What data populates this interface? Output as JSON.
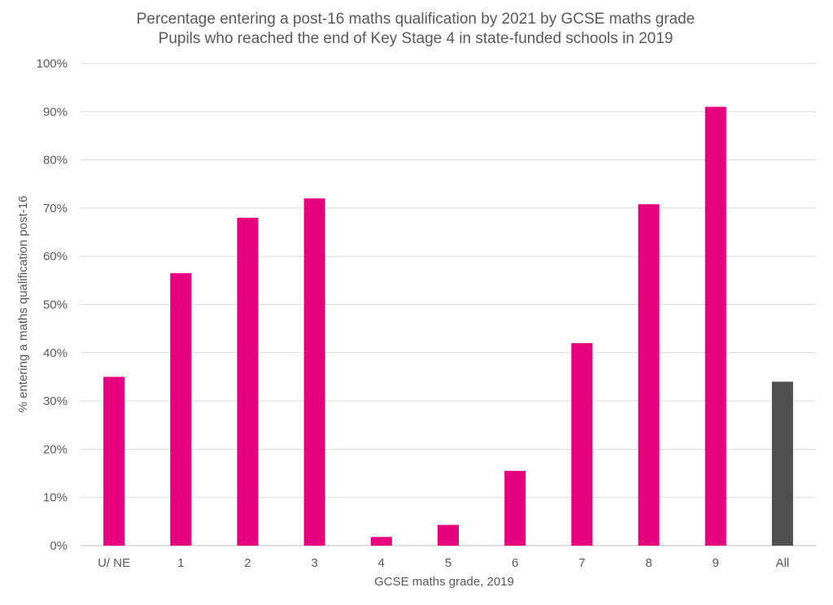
{
  "chart_data": {
    "type": "bar",
    "title": "Percentage entering a post-16 maths qualification by 2021 by GCSE maths grade",
    "subtitle": "Pupils who reached the end of Key Stage 4 in state-funded schools in 2019",
    "xlabel": "GCSE maths grade, 2019",
    "ylabel": "% entering a maths qualification post-16",
    "ylim": [
      0,
      100
    ],
    "yticks": [
      0,
      10,
      20,
      30,
      40,
      50,
      60,
      70,
      80,
      90,
      100
    ],
    "ytick_suffix": "%",
    "grid": true,
    "categories": [
      "U/ NE",
      "1",
      "2",
      "3",
      "4",
      "5",
      "6",
      "7",
      "8",
      "9",
      "All"
    ],
    "values": [
      35.0,
      56.5,
      68.0,
      72.0,
      1.8,
      4.3,
      15.5,
      42.0,
      70.8,
      91.0,
      34.0
    ],
    "colors": [
      "#e6007e",
      "#e6007e",
      "#e6007e",
      "#e6007e",
      "#e6007e",
      "#e6007e",
      "#e6007e",
      "#e6007e",
      "#e6007e",
      "#e6007e",
      "#505050"
    ]
  }
}
